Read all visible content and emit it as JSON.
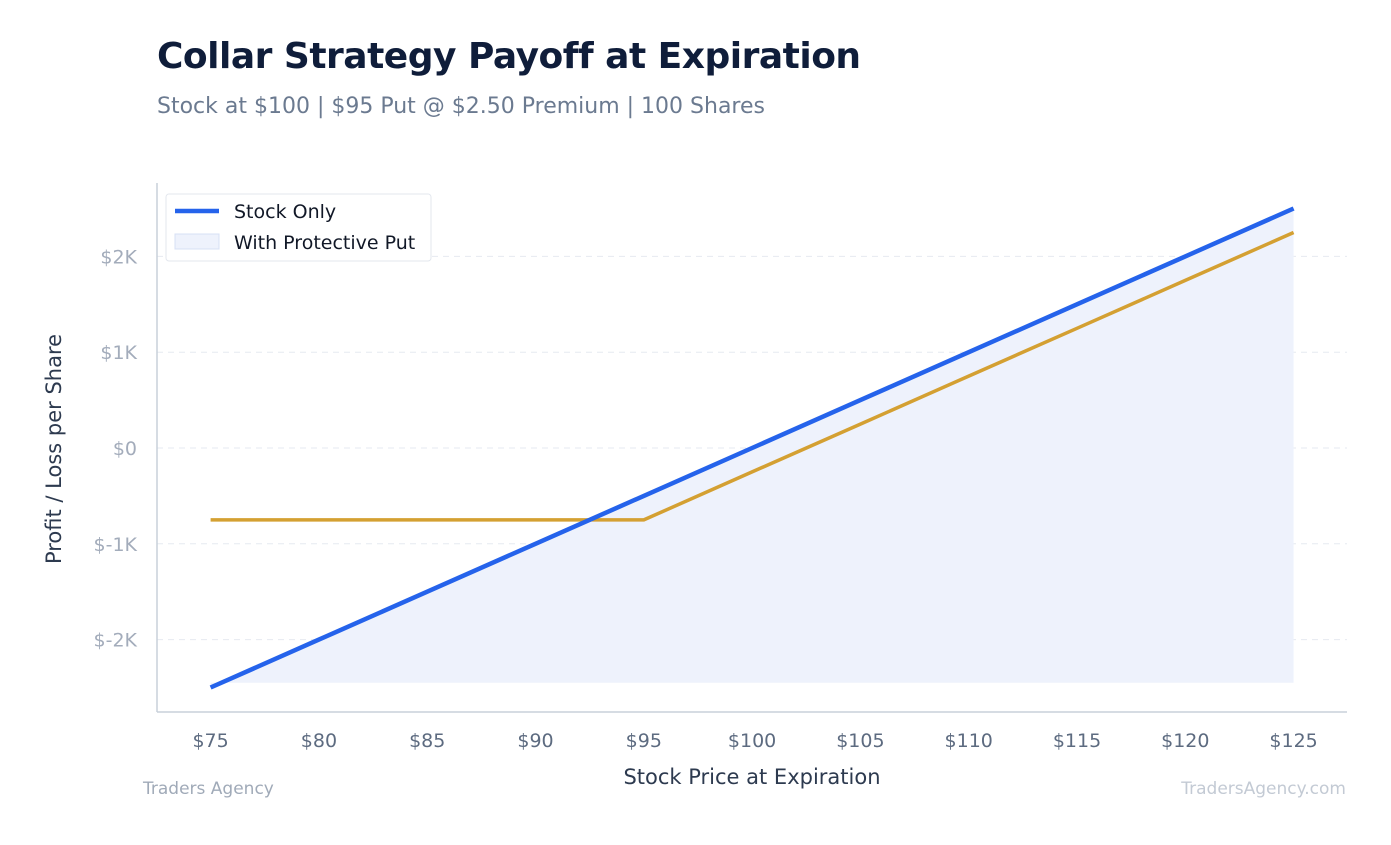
{
  "chart_data": {
    "type": "line",
    "title": "Collar Strategy Payoff at Expiration",
    "subtitle": "Stock at $100 | $95 Put @ $2.50 Premium | 100 Shares",
    "xlabel": "Stock Price at Expiration",
    "ylabel": "Profit / Loss per Share",
    "x": [
      75,
      80,
      85,
      90,
      95,
      100,
      105,
      110,
      115,
      120,
      125
    ],
    "x_tick_labels": [
      "$75",
      "$80",
      "$85",
      "$90",
      "$95",
      "$100",
      "$105",
      "$110",
      "$115",
      "$120",
      "$125"
    ],
    "y_ticks": [
      -2000,
      -1000,
      0,
      1000,
      2000
    ],
    "y_tick_labels": [
      "$-2K",
      "$-1K",
      "$0",
      "$1K",
      "$2K"
    ],
    "xlim": [
      72.5,
      127.5
    ],
    "ylim": [
      -2750,
      2750
    ],
    "grid": "horizontal dashed",
    "legend_position": "top-left",
    "series": [
      {
        "name": "Stock Only",
        "color": "#2563eb",
        "style": "line",
        "values": [
          -2500,
          -2000,
          -1500,
          -1000,
          -500,
          0,
          500,
          1000,
          1500,
          2000,
          2500
        ]
      },
      {
        "name": "With Protective Put",
        "color": "#d4a032",
        "fill_color": "#eef2fc",
        "style": "line",
        "values": [
          -750,
          -750,
          -750,
          -750,
          -750,
          -250,
          250,
          750,
          1250,
          1750,
          2250
        ]
      }
    ],
    "shaded_region": {
      "x": [
        75,
        125
      ],
      "y_top": [
        -2500,
        2500
      ],
      "y_bottom": -2450,
      "color": "#eef2fc"
    }
  },
  "footer": {
    "left": "Traders Agency",
    "right": "TradersAgency.com"
  }
}
